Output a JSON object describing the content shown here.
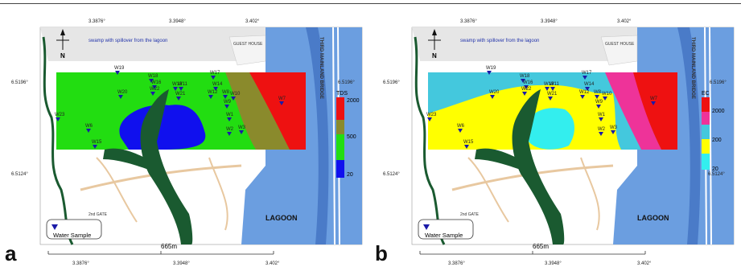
{
  "panels": [
    {
      "letter": "a",
      "legend": {
        "title": "TDS",
        "labels": [
          "2000",
          "500",
          "20"
        ],
        "colors": [
          "#ee1111",
          "#8a8a2c",
          "#22dd11",
          "#1010ee"
        ]
      },
      "zone_colors": {
        "base": "#22dd11",
        "low": "#1010ee",
        "mid": "#8a8a2c",
        "high": "#ee1111"
      },
      "wells": [
        "W19",
        "W18",
        "W17",
        "W16",
        "W20",
        "W22",
        "W11",
        "W21",
        "W13",
        "W14",
        "W12",
        "W8",
        "W9",
        "W10",
        "W23",
        "W6",
        "W15",
        "W2",
        "W3",
        "W7",
        "W1"
      ]
    },
    {
      "letter": "b",
      "legend": {
        "title": "EC",
        "labels": [
          "2000",
          "200",
          "20"
        ],
        "colors": [
          "#ee1111",
          "#ee3399",
          "#44c8dd",
          "#ffff00",
          "#33eeee"
        ]
      },
      "zone_colors": {
        "base": "#44c8dd",
        "low": "#ffff00",
        "core": "#33eeee",
        "mid": "#ee3399",
        "high": "#ee1111"
      },
      "wells": [
        "W19",
        "W18",
        "W17",
        "W16",
        "W20",
        "W22",
        "W13",
        "W14",
        "W12",
        "W8",
        "W9",
        "W10",
        "W23",
        "W6",
        "W15",
        "W2",
        "W3",
        "W7",
        "W1",
        "W11",
        "W21"
      ]
    }
  ],
  "map_text": {
    "swamp": "swamp with spillover from the lagoon",
    "bridge": "THIRD MAINLAND BRIDGE",
    "north": "N",
    "lagoon": "LAGOON",
    "water_sample": "Water Sample",
    "scale": "665m",
    "coord_top": [
      "3.3876°",
      "3.3948°",
      "3.402°"
    ],
    "coord_bottom": [
      "3.3876°",
      "3.3948°",
      "3.402°"
    ],
    "lat_upper": "6.5196°",
    "lat_lower": "6.5124°",
    "guest_house": "GUEST HOUSE",
    "gate": "2nd GATE"
  }
}
